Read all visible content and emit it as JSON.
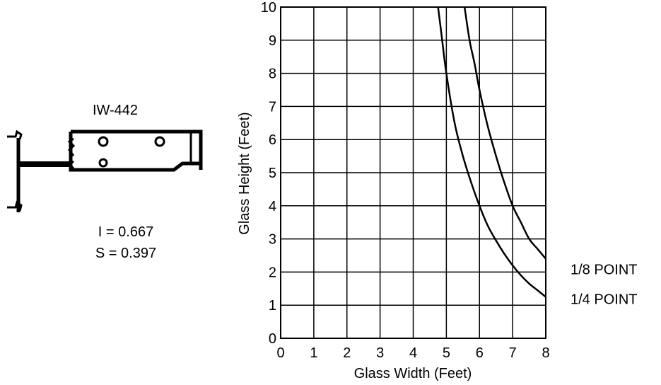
{
  "profile": {
    "name": "IW-442",
    "moment_of_inertia": "I = 0.667",
    "section_modulus": "S = 0.397"
  },
  "chart_data": {
    "type": "line",
    "title": "",
    "xlabel": "Glass Width (Feet)",
    "ylabel": "Glass Height (Feet)",
    "xlim": [
      0,
      8
    ],
    "ylim": [
      0,
      10
    ],
    "xticks": [
      0,
      1,
      2,
      3,
      4,
      5,
      6,
      7,
      8
    ],
    "yticks": [
      0,
      1,
      2,
      3,
      4,
      5,
      6,
      7,
      8,
      9,
      10
    ],
    "grid": true,
    "series": [
      {
        "name": "1/8 POINT",
        "x": [
          5.55,
          5.7,
          5.85,
          6.0,
          6.25,
          6.5,
          6.75,
          7.0,
          7.25,
          7.5,
          7.75,
          8.0
        ],
        "y": [
          10.0,
          9.0,
          8.3,
          7.5,
          6.4,
          5.5,
          4.7,
          4.0,
          3.5,
          3.0,
          2.7,
          2.4
        ]
      },
      {
        "name": "1/4 POINT",
        "x": [
          4.75,
          4.85,
          5.0,
          5.25,
          5.5,
          5.75,
          6.0,
          6.25,
          6.5,
          6.75,
          7.0,
          7.25,
          7.5,
          7.75,
          8.0
        ],
        "y": [
          10.0,
          9.2,
          8.0,
          6.5,
          5.5,
          4.7,
          4.0,
          3.4,
          2.95,
          2.55,
          2.2,
          1.9,
          1.65,
          1.45,
          1.25
        ]
      }
    ]
  }
}
